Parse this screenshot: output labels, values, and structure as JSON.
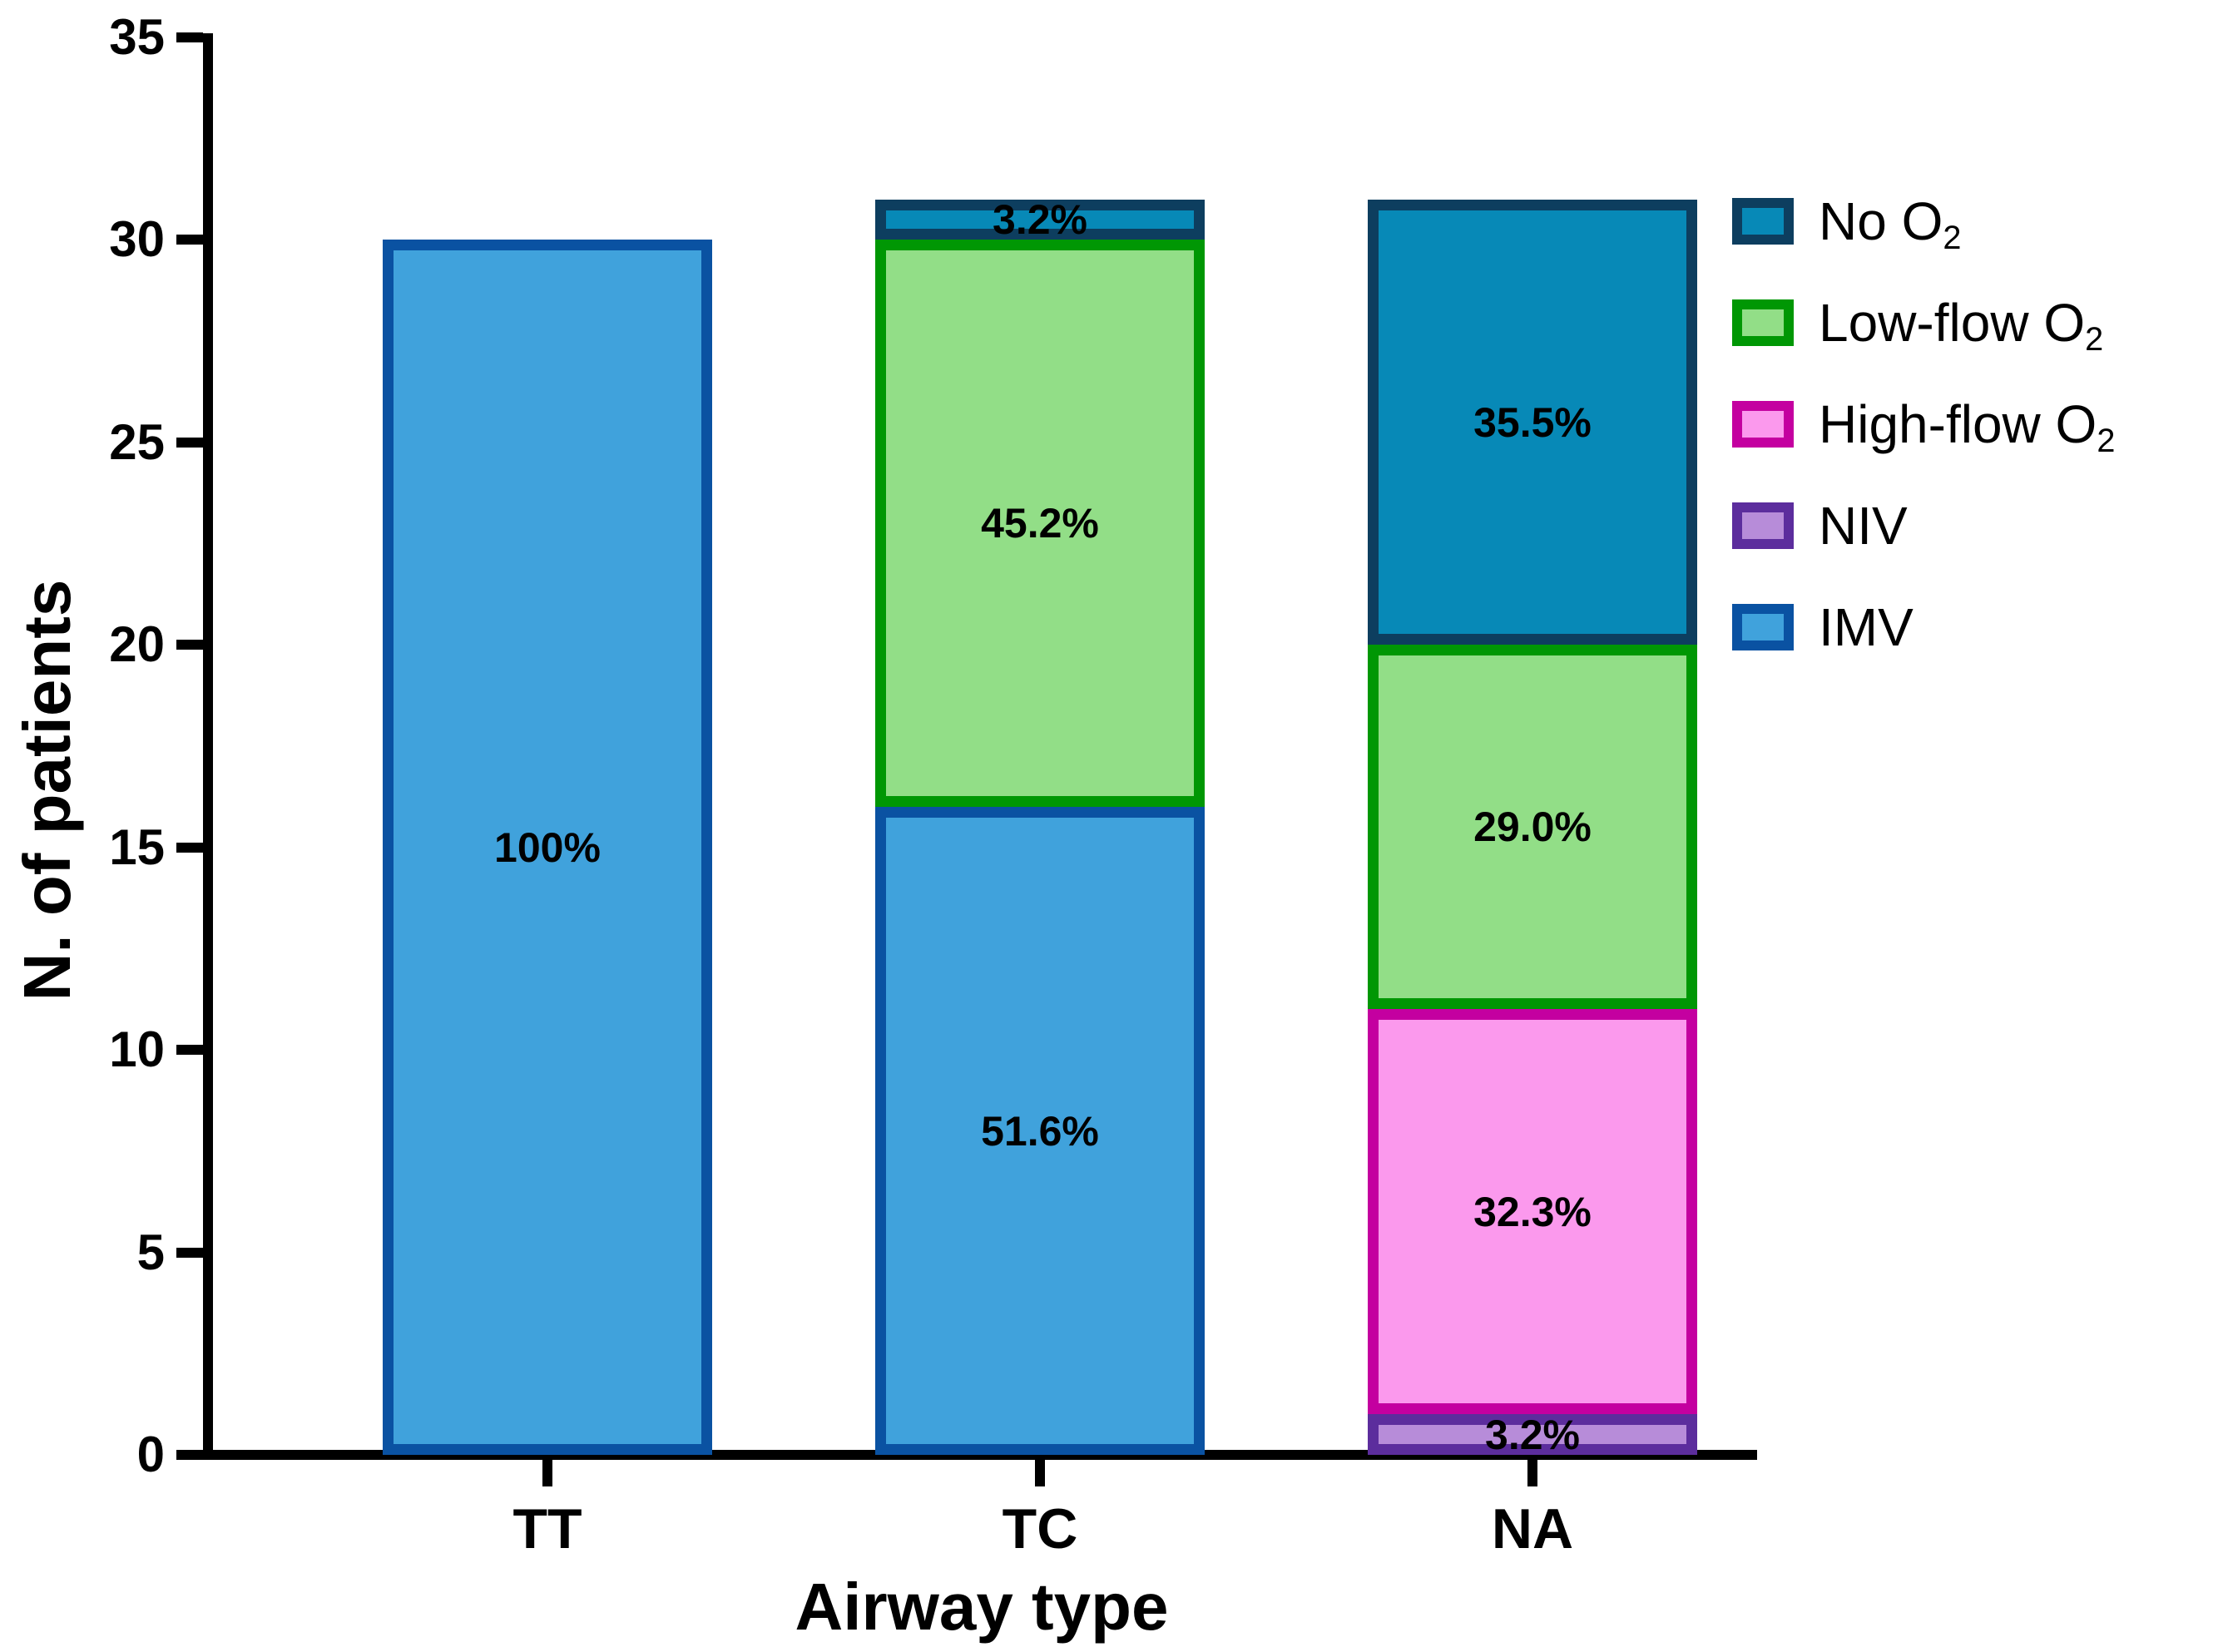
{
  "chart_data": {
    "type": "bar",
    "stacked": true,
    "title": "",
    "xlabel": "Airway type",
    "ylabel": "N. of patients",
    "ylim": [
      0,
      35
    ],
    "yticks": [
      0,
      5,
      10,
      15,
      20,
      25,
      30,
      35
    ],
    "grid": false,
    "legend_position": "top-right",
    "categories": [
      "TT",
      "TC",
      "NA"
    ],
    "styles": {
      "No O2": {
        "fill": "#0789B7",
        "border": "#0D3E5F"
      },
      "Low-flow O2": {
        "fill": "#92DE87",
        "border": "#009704"
      },
      "High-flow O2": {
        "fill": "#FB99ED",
        "border": "#C400A0"
      },
      "NIV": {
        "fill": "#B78CD9",
        "border": "#5C2D9D"
      },
      "IMV": {
        "fill": "#40A2DC",
        "border": "#0A52A2"
      }
    },
    "legend": [
      {
        "key": "No O2",
        "label": "No O",
        "sub": "2"
      },
      {
        "key": "Low-flow O2",
        "label": "Low-flow O",
        "sub": "2"
      },
      {
        "key": "High-flow O2",
        "label": "High-flow O",
        "sub": "2"
      },
      {
        "key": "NIV",
        "label": "NIV",
        "sub": ""
      },
      {
        "key": "IMV",
        "label": "IMV",
        "sub": ""
      }
    ],
    "bars": [
      {
        "category": "TT",
        "total_patients": 30,
        "segments": [
          {
            "key": "IMV",
            "patients": 30,
            "pct": "100%"
          }
        ]
      },
      {
        "category": "TC",
        "total_patients": 31,
        "segments": [
          {
            "key": "IMV",
            "patients": 16,
            "pct": "51.6%"
          },
          {
            "key": "Low-flow O2",
            "patients": 14,
            "pct": "45.2%"
          },
          {
            "key": "No O2",
            "patients": 1,
            "pct": "3.2%"
          }
        ]
      },
      {
        "category": "NA",
        "total_patients": 31,
        "segments": [
          {
            "key": "NIV",
            "patients": 1,
            "pct": "3.2%"
          },
          {
            "key": "High-flow O2",
            "patients": 10,
            "pct": "32.3%"
          },
          {
            "key": "Low-flow O2",
            "patients": 9,
            "pct": "29.0%"
          },
          {
            "key": "No O2",
            "patients": 11,
            "pct": "35.5%"
          }
        ]
      }
    ]
  }
}
